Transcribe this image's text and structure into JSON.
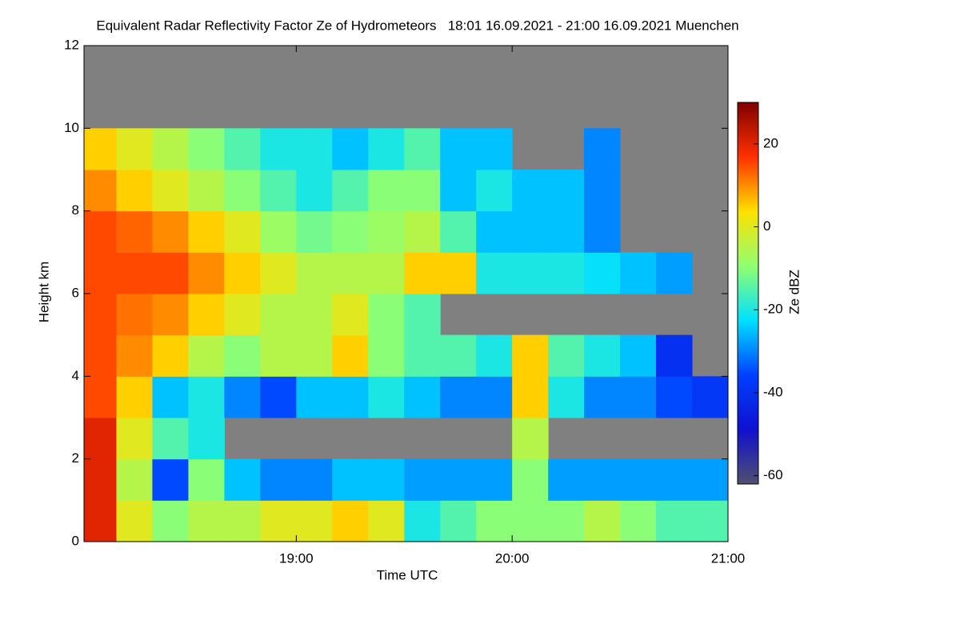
{
  "chart_data": {
    "type": "heatmap",
    "title": "Equivalent Radar Reflectivity Factor Ze of Hydrometeors   18:01 16.09.2021 - 21:00 16.09.2021 Muenchen",
    "x_label": "Time UTC",
    "y_label": "Height km",
    "colorbar_label": "Ze dBZ",
    "xlim": [
      1,
      180
    ],
    "xticks": [
      {
        "value": 60,
        "label": "19:00"
      },
      {
        "value": 120,
        "label": "20:00"
      },
      {
        "value": 180,
        "label": "21:00"
      }
    ],
    "ylim": [
      0,
      12
    ],
    "yticks": [
      0,
      2,
      4,
      6,
      8,
      10,
      12
    ],
    "zlim": [
      -62,
      30
    ],
    "zticks": [
      -60,
      -40,
      -20,
      0,
      20
    ],
    "colormap": [
      "#505070",
      "#1010d0",
      "#0040ff",
      "#00e0ff",
      "#90ff70",
      "#ffe000",
      "#ff3000",
      "#800000"
    ],
    "x_bins": [
      1,
      10,
      20,
      30,
      40,
      50,
      60,
      70,
      80,
      90,
      100,
      110,
      120,
      130,
      140,
      150,
      160,
      170,
      180
    ],
    "y_bins": [
      0,
      1,
      2,
      3,
      4,
      5,
      6,
      7,
      8,
      9,
      10,
      11,
      12
    ],
    "z": [
      [
        20,
        0,
        -10,
        -5,
        -5,
        0,
        0,
        5,
        0,
        -20,
        -15,
        -10,
        -10,
        -10,
        -5,
        -10,
        -15,
        -15
      ],
      [
        20,
        -5,
        -35,
        -10,
        -25,
        -30,
        -30,
        -25,
        -25,
        -28,
        -28,
        -28,
        -10,
        -28,
        -28,
        -28,
        -28,
        -28
      ],
      [
        20,
        0,
        -15,
        -20,
        null,
        null,
        null,
        null,
        null,
        null,
        null,
        null,
        -5,
        null,
        null,
        null,
        null,
        null
      ],
      [
        15,
        5,
        -25,
        -20,
        -30,
        -35,
        -25,
        -25,
        -20,
        -25,
        -30,
        -30,
        5,
        -20,
        -30,
        -30,
        -35,
        -38
      ],
      [
        15,
        10,
        5,
        -5,
        -10,
        -5,
        -5,
        5,
        -10,
        -15,
        -15,
        -20,
        5,
        -15,
        -20,
        -25,
        -40,
        null
      ],
      [
        15,
        12,
        10,
        5,
        0,
        -5,
        -5,
        0,
        -10,
        -15,
        null,
        null,
        null,
        null,
        null,
        null,
        null,
        null
      ],
      [
        15,
        15,
        15,
        10,
        5,
        0,
        -5,
        -5,
        -5,
        5,
        5,
        -20,
        -20,
        -20,
        -22,
        -25,
        -28,
        null
      ],
      [
        15,
        13,
        10,
        5,
        0,
        -8,
        -12,
        -10,
        -8,
        -5,
        -15,
        -25,
        -25,
        -25,
        -30,
        null,
        null,
        null
      ],
      [
        10,
        5,
        0,
        -5,
        -10,
        -15,
        -20,
        -15,
        -10,
        -10,
        -25,
        -20,
        -25,
        -25,
        -30,
        null,
        null,
        null
      ],
      [
        5,
        0,
        -5,
        -10,
        -15,
        -20,
        -20,
        -25,
        -20,
        -15,
        -25,
        -25,
        null,
        null,
        -30,
        null,
        null,
        null
      ],
      [
        null,
        null,
        null,
        null,
        null,
        null,
        null,
        null,
        null,
        null,
        null,
        null,
        null,
        null,
        null,
        null,
        null,
        null
      ],
      [
        null,
        null,
        null,
        null,
        null,
        null,
        null,
        null,
        null,
        null,
        null,
        null,
        null,
        null,
        null,
        null,
        null,
        null
      ]
    ]
  }
}
